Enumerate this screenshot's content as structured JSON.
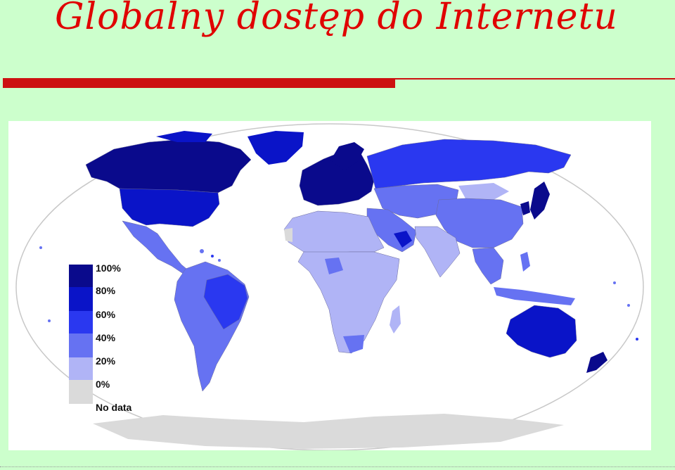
{
  "slide": {
    "title": "Globalny dostęp do Internetu"
  },
  "map": {
    "legend": [
      {
        "label": "100%",
        "color": "#0a0a8c"
      },
      {
        "label": "80%",
        "color": "#0a14c8"
      },
      {
        "label": "60%",
        "color": "#2a38f0"
      },
      {
        "label": "40%",
        "color": "#6672f2"
      },
      {
        "label": "20%",
        "color": "#b0b4f6"
      },
      {
        "label": "0%",
        "color": "#dadada"
      },
      {
        "label": "No data",
        "color": ""
      }
    ],
    "colors": {
      "ocean": "#ffffff",
      "oval": "#dfe6f5",
      "antarctica": "#dadada",
      "title": "#e00000",
      "rule": "#cc1111",
      "background": "#ccffcc"
    }
  }
}
